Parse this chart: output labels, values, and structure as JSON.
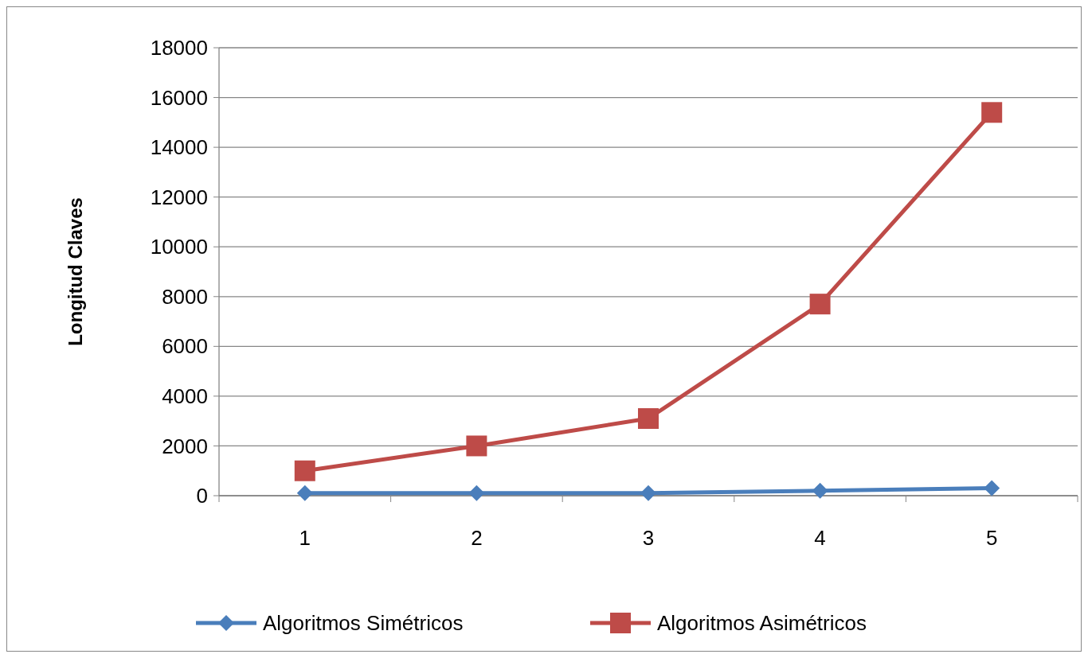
{
  "chart_data": {
    "type": "line",
    "ylabel": "Longitud  Claves",
    "categories": [
      "1",
      "2",
      "3",
      "4",
      "5"
    ],
    "series": [
      {
        "name": "Algoritmos Simétricos",
        "color": "#4a7ebb",
        "marker": "diamond",
        "values": [
          100,
          100,
          100,
          200,
          300
        ]
      },
      {
        "name": "Algoritmos Asimétricos",
        "color": "#be4b48",
        "marker": "square",
        "values": [
          1000,
          2000,
          3100,
          7700,
          15400
        ]
      }
    ],
    "ylim": [
      0,
      18000
    ],
    "yticks": [
      0,
      2000,
      4000,
      6000,
      8000,
      10000,
      12000,
      14000,
      16000,
      18000
    ],
    "grid": "y",
    "legend": "bottom"
  }
}
